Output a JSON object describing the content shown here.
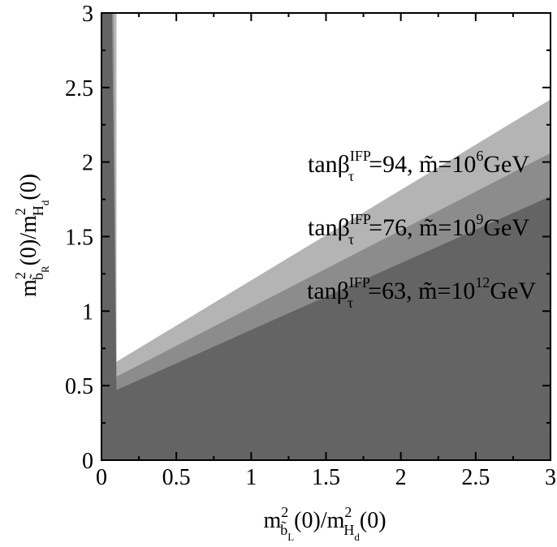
{
  "chart_data": {
    "type": "area",
    "xlim": [
      0,
      3
    ],
    "ylim": [
      0,
      3
    ],
    "x_ticks": [
      "0",
      "0.5",
      "1",
      "1.5",
      "2",
      "2.5",
      "3"
    ],
    "y_ticks": [
      "0",
      "0.5",
      "1",
      "1.5",
      "2",
      "2.5",
      "3"
    ],
    "xlabel": {
      "base": "m",
      "sup": "2",
      "sub": "b̃",
      "subsub": "L",
      "mid": "(0)/m",
      "sup2": "2",
      "sub2": "H",
      "subsub2": "d",
      "tail": "(0)"
    },
    "ylabel": {
      "base": "m",
      "sup": "2",
      "sub": "b̃",
      "subsub": "R",
      "mid": "(0)/m",
      "sup2": "2",
      "sub2": "H",
      "subsub2": "d",
      "tail": "(0)"
    },
    "regions": [
      {
        "color": "#b4b4b4",
        "points": [
          [
            0.1,
            0.66
          ],
          [
            3,
            2.42
          ],
          [
            3,
            0
          ],
          [
            0,
            0
          ],
          [
            0,
            3
          ],
          [
            0.1,
            3
          ]
        ]
      },
      {
        "color": "#8c8c8c",
        "points": [
          [
            0.1,
            0.56
          ],
          [
            3,
            2.06
          ],
          [
            3,
            0
          ],
          [
            0,
            0
          ],
          [
            0,
            3
          ],
          [
            0.08,
            3
          ]
        ]
      },
      {
        "color": "#646464",
        "points": [
          [
            0.1,
            0.47
          ],
          [
            3,
            1.77
          ],
          [
            3,
            0
          ],
          [
            0,
            0
          ],
          [
            0,
            3
          ],
          [
            0.07,
            3
          ]
        ]
      }
    ],
    "annotations": [
      {
        "prefix": "tanβ",
        "sup": "IFP",
        "sub": "τ",
        "eq": "=94, ",
        "mt": "m̃=10",
        "exp": "6",
        "unit": "GeV"
      },
      {
        "prefix": "tanβ",
        "sup": "IFP",
        "sub": "τ",
        "eq": "=76, ",
        "mt": "m̃=10",
        "exp": "9",
        "unit": "GeV"
      },
      {
        "prefix": "tanβ",
        "sup": "IFP",
        "sub": "τ",
        "eq": "=63, ",
        "mt": "m̃=10",
        "exp": "12",
        "unit": "GeV"
      }
    ]
  }
}
